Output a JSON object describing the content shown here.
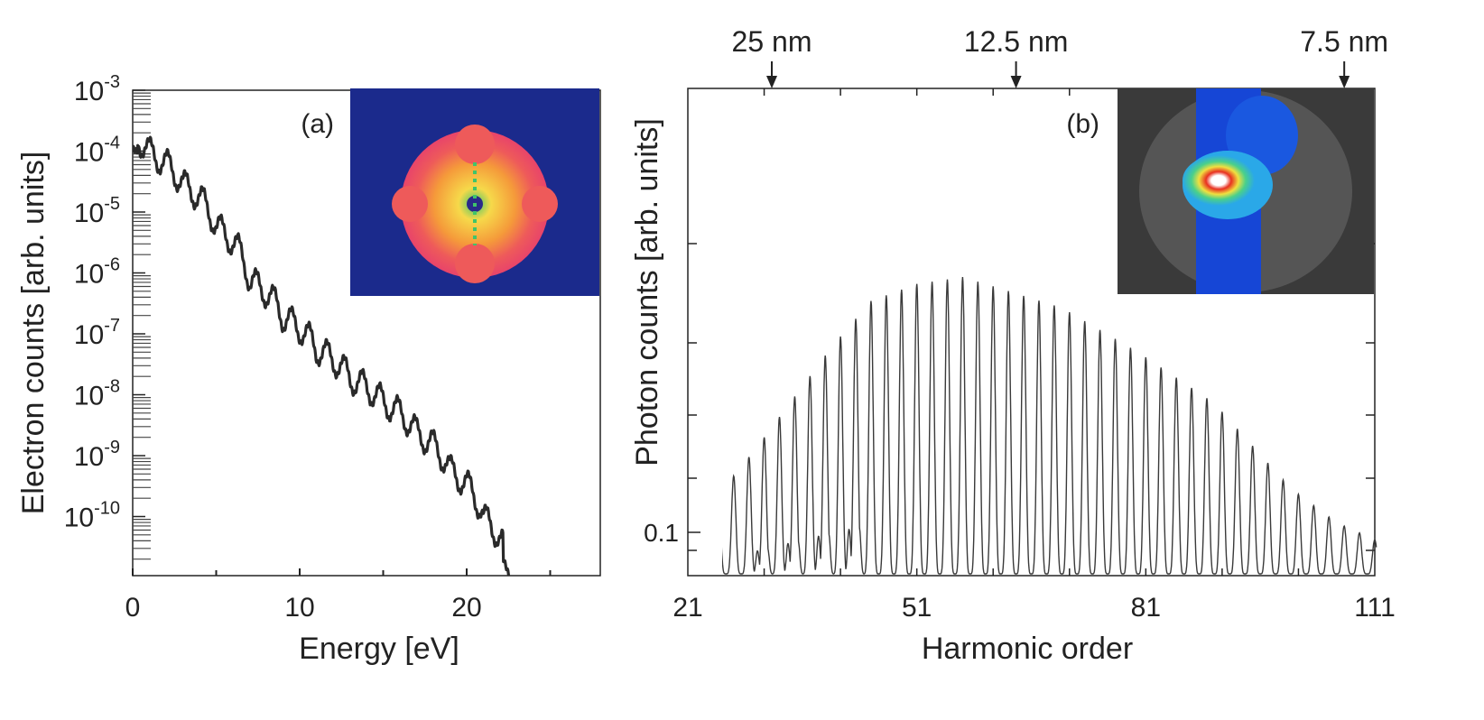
{
  "chart_data": [
    {
      "type": "line",
      "panel_label": "(a)",
      "xlabel": "Energy [eV]",
      "ylabel": "Electron counts [arb. units]",
      "x_scale": "linear",
      "y_scale": "log",
      "xlim": [
        0,
        28
      ],
      "ylim": [
        1.5e-11,
        0.001
      ],
      "x_ticks": [
        {
          "value": 0,
          "label": "0"
        },
        {
          "value": 10,
          "label": "10"
        },
        {
          "value": 20,
          "label": "20"
        }
      ],
      "y_ticks": [
        {
          "value": 0.001,
          "base": "10",
          "exp": "-3"
        },
        {
          "value": 0.0001,
          "base": "10",
          "exp": "-4"
        },
        {
          "value": 1e-05,
          "base": "10",
          "exp": "-5"
        },
        {
          "value": 1e-06,
          "base": "10",
          "exp": "-6"
        },
        {
          "value": 1e-07,
          "base": "10",
          "exp": "-7"
        },
        {
          "value": 1e-08,
          "base": "10",
          "exp": "-8"
        },
        {
          "value": 1e-09,
          "base": "10",
          "exp": "-9"
        },
        {
          "value": 1e-10,
          "base": "10",
          "exp": "-10"
        }
      ],
      "series": [
        {
          "envelope_x": [
            0,
            1,
            3,
            5,
            7,
            9,
            11,
            13,
            15,
            17,
            19,
            21,
            22.3,
            22.6
          ],
          "envelope_y": [
            0.0002,
            0.0001,
            3e-05,
            6e-06,
            8e-07,
            2e-07,
            6e-08,
            2e-08,
            8e-09,
            2.5e-09,
            6e-10,
            1e-10,
            3e-11,
            1.5e-11
          ],
          "oscillation_period_eV": 1.06,
          "oscillation_depth_decades": 0.45
        }
      ],
      "inset": {
        "description_colors": [
          "#1b2a8c",
          "#e8446a",
          "#f59a3a",
          "#f6d94a",
          "#3fc46a"
        ]
      }
    },
    {
      "type": "line",
      "panel_label": "(b)",
      "xlabel": "Harmonic order",
      "ylabel": "Photon counts [arb. units]",
      "x_scale": "linear",
      "y_scale": "log",
      "xlim": [
        21,
        111
      ],
      "x_ticks": [
        {
          "value": 21,
          "label": "21"
        },
        {
          "value": 51,
          "label": "51"
        },
        {
          "value": 81,
          "label": "81"
        },
        {
          "value": 111,
          "label": "111"
        }
      ],
      "y_ticks": [
        {
          "value": 0.1,
          "label": "0.1"
        }
      ],
      "top_axis_labels": [
        {
          "harmonic": 32,
          "label": "25 nm"
        },
        {
          "harmonic": 64,
          "label": "12.5 nm"
        },
        {
          "harmonic": 107,
          "label": "7.5 nm"
        }
      ],
      "series": [
        {
          "peak_spacing_harmonic": 2,
          "envelope_harmonic": [
            21,
            30,
            40,
            45,
            51,
            57,
            60,
            70,
            80,
            90,
            100,
            106,
            111
          ],
          "envelope_relative_height": [
            0.12,
            0.37,
            0.67,
            0.8,
            0.85,
            0.87,
            0.85,
            0.78,
            0.65,
            0.5,
            0.25,
            0.15,
            0.1
          ]
        }
      ],
      "inset": {
        "description_colors": [
          "#3a3a3a",
          "#1646d6",
          "#2aa8e8",
          "#4ad08a",
          "#f0e040",
          "#e83020",
          "#ffffff"
        ]
      }
    }
  ]
}
